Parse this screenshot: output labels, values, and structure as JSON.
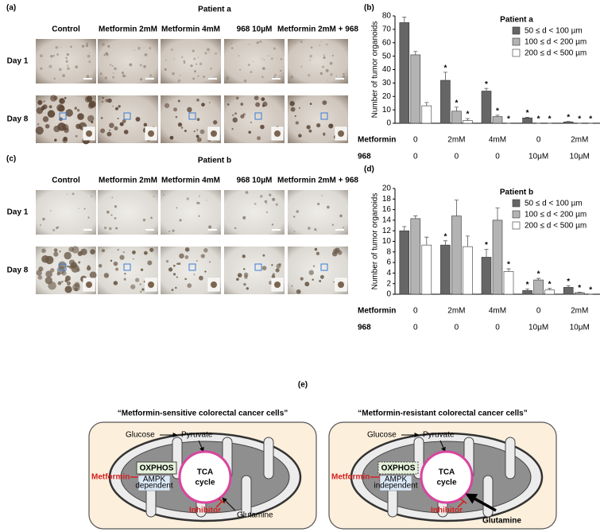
{
  "panel_a": {
    "label": "(a)",
    "title": "Patient a",
    "columns": [
      "Control",
      "Metformin 2mM",
      "Metformin 4mM",
      "968 10µM",
      "Metformin 2mM + 968"
    ],
    "rows": [
      "Day 1",
      "Day 8"
    ]
  },
  "panel_c": {
    "label": "(c)",
    "title": "Patient b",
    "columns": [
      "Control",
      "Metformin 2mM",
      "Metformin 4mM",
      "968 10µM",
      "Metformin 2mM + 968"
    ],
    "rows": [
      "Day 1",
      "Day 8"
    ]
  },
  "chart_data": [
    {
      "type": "bar",
      "label": "(b)",
      "title": "Patient a",
      "y_label": "Number of tumor organoids",
      "category_rows": [
        "Metformin",
        "968"
      ],
      "categories": [
        "0",
        "2mM",
        "4mM",
        "0",
        "2mM"
      ],
      "categories2": [
        "0",
        "0",
        "0",
        "10μM",
        "10μM"
      ],
      "ylim": [
        0,
        80
      ],
      "yticks": [
        0,
        10,
        20,
        30,
        40,
        50,
        60,
        70,
        80
      ],
      "series": [
        {
          "name": "50 ≤ d < 100 µm",
          "color": "#666666",
          "values": [
            75,
            32,
            24,
            4,
            1
          ],
          "errors": [
            4,
            6,
            2,
            0.5,
            0.3
          ],
          "stars": [
            null,
            "*",
            "*",
            "*",
            "*"
          ]
        },
        {
          "name": "100 ≤ d < 200 µm",
          "color": "#b3b3b3",
          "values": [
            51,
            9,
            5,
            0,
            0
          ],
          "errors": [
            2.5,
            3,
            1,
            0,
            0
          ],
          "stars": [
            null,
            "*",
            "*",
            "*",
            "*"
          ]
        },
        {
          "name": "200 ≤ d < 500 µm",
          "color": "#ffffff",
          "values": [
            13,
            2,
            0,
            0,
            0
          ],
          "errors": [
            2.5,
            1.5,
            0,
            0,
            0
          ],
          "stars": [
            null,
            "*",
            "*",
            "*",
            "*"
          ]
        }
      ]
    },
    {
      "type": "bar",
      "label": "(d)",
      "title": "Patient b",
      "y_label": "Number of tumor organoids",
      "category_rows": [
        "Metformin",
        "968"
      ],
      "categories": [
        "0",
        "2mM",
        "4mM",
        "0",
        "2mM"
      ],
      "categories2": [
        "0",
        "0",
        "0",
        "10μM",
        "10μM"
      ],
      "ylim": [
        0,
        20
      ],
      "yticks": [
        0,
        2,
        4,
        6,
        8,
        10,
        12,
        14,
        16,
        18,
        20
      ],
      "series": [
        {
          "name": "50 ≤ d < 100 µm",
          "color": "#666666",
          "values": [
            12,
            9.3,
            7,
            0.7,
            1.3
          ],
          "errors": [
            0.8,
            0.8,
            1.5,
            0.3,
            0.3
          ],
          "stars": [
            null,
            "*",
            "*",
            "*",
            "*"
          ]
        },
        {
          "name": "100 ≤ d < 200 µm",
          "color": "#b3b3b3",
          "values": [
            14.3,
            14.8,
            14,
            2.7,
            0.3
          ],
          "errors": [
            0.5,
            3,
            2.3,
            0.3,
            0.1
          ],
          "stars": [
            null,
            null,
            null,
            "*",
            "*"
          ]
        },
        {
          "name": "200 ≤ d < 500 µm",
          "color": "#ffffff",
          "values": [
            9.3,
            9,
            4.3,
            0.8,
            0
          ],
          "errors": [
            1.5,
            2,
            0.5,
            0.3,
            0
          ],
          "stars": [
            null,
            null,
            "*",
            "*",
            "*"
          ]
        }
      ]
    }
  ],
  "panel_e": {
    "label": "(e)",
    "cells": [
      {
        "title": "“Metformin-sensitive colorectal cancer cells”",
        "glucose": "Glucose",
        "pyruvate": "Pyruvate",
        "drug": "Metformin",
        "oxphos": "OXPHOS",
        "ampk": [
          "AMPK",
          "dependent"
        ],
        "tca": [
          "TCA",
          "cycle"
        ],
        "inhibitor": "Inhibitor",
        "glutamine": "Glutamine"
      },
      {
        "title": "“Metformin-resistant colorectal cancer cells”",
        "glucose": "Glucose",
        "pyruvate": "Pyruvate",
        "drug": "Metformin",
        "oxphos": "OXPHOS",
        "ampk": [
          "AMPK",
          "independent"
        ],
        "tca": [
          "TCA",
          "cycle"
        ],
        "inhibitor": "Inhibitor",
        "glutamine": "Glutamine"
      }
    ]
  }
}
